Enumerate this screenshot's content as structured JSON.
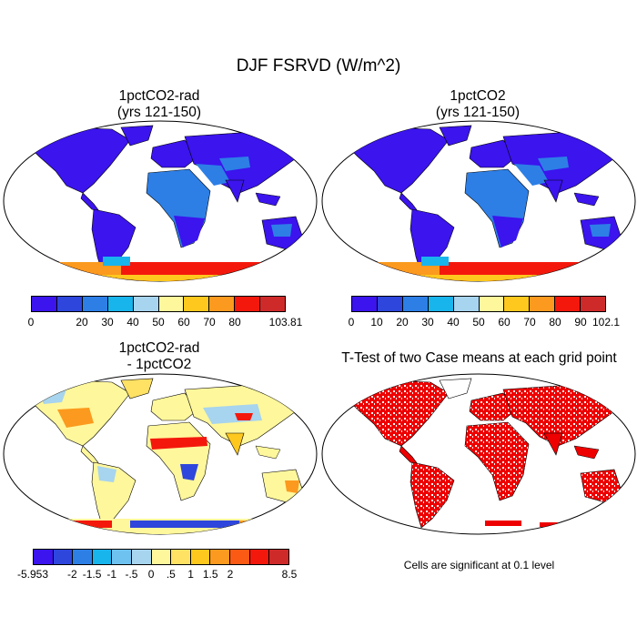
{
  "title": "DJF FSRVD (W/m^2)",
  "panels": {
    "p1": {
      "title_line1": "1pctCO2-rad",
      "title_line2": "(yrs 121-150)"
    },
    "p2": {
      "title_line1": "1pctCO2",
      "title_line2": "(yrs 121-150)"
    },
    "p3": {
      "title_line1": "1pctCO2-rad",
      "title_line2": "- 1pctCO2"
    },
    "p4": {
      "title_line1": "T-Test of two Case means at each grid point",
      "note": "Cells are significant at 0.1 level"
    }
  },
  "colorbars": {
    "cb1": {
      "colors": [
        "#3b14ee",
        "#2e46dc",
        "#2d7fe6",
        "#18b4ec",
        "#a7d4ee",
        "#fff79c",
        "#ffc81e",
        "#fb9a1e",
        "#f4180c",
        "#cf2a2a"
      ],
      "labels": [
        "0",
        "",
        "20",
        "30",
        "40",
        "50",
        "60",
        "70",
        "80",
        "",
        "103.81"
      ]
    },
    "cb2": {
      "colors": [
        "#3b14ee",
        "#2e46dc",
        "#2d7fe6",
        "#18b4ec",
        "#a7d4ee",
        "#fff79c",
        "#ffc81e",
        "#fb9a1e",
        "#f4180c",
        "#cf2a2a"
      ],
      "labels": [
        "0",
        "10",
        "20",
        "30",
        "40",
        "50",
        "60",
        "70",
        "80",
        "90",
        "102.1"
      ]
    },
    "cb3": {
      "colors": [
        "#3b14ee",
        "#2e46dc",
        "#2d7fe6",
        "#18b4ec",
        "#6ec2f0",
        "#a7d4ee",
        "#fff79c",
        "#ffe164",
        "#ffc81e",
        "#fb9a1e",
        "#fb5a14",
        "#f4180c",
        "#cf2a2a"
      ],
      "labels": [
        "-5.953",
        "",
        "-2",
        "-1.5",
        "-1",
        "-.5",
        "0",
        ".5",
        "1",
        "1.5",
        "2",
        "",
        "",
        "8.5"
      ]
    }
  },
  "colors": {
    "land_low": "#3b14ee",
    "land_mid": "#2d7fe6",
    "antarctic_hot": "#f4180c",
    "diff_pos": "#fff79c",
    "diff_neg": "#a7d4ee",
    "signif": "#ee0000"
  }
}
